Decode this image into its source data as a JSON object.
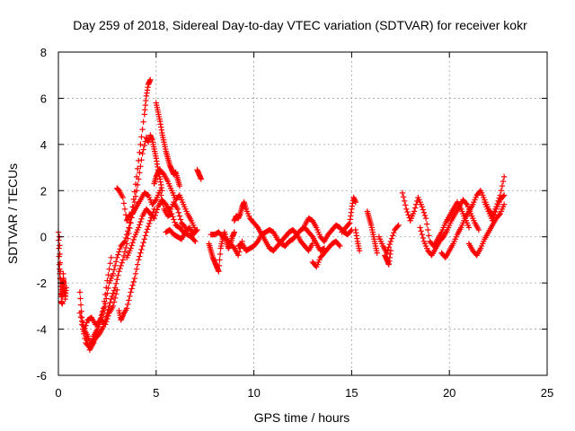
{
  "chart_data": {
    "type": "scatter",
    "title": "Day 259 of 2018, Sidereal Day-to-day VTEC variation (SDTVAR) for receiver kokr",
    "xlabel": "GPS time / hours",
    "ylabel": "SDTVAR / TECUs",
    "xlim": [
      0,
      25
    ],
    "ylim": [
      -6,
      8
    ],
    "x_ticks": [
      0,
      5,
      10,
      15,
      20,
      25
    ],
    "y_ticks": [
      -6,
      -4,
      -2,
      0,
      2,
      4,
      6,
      8
    ],
    "x_tick_labels": [
      "0",
      "5",
      "10",
      "15",
      "20",
      "25"
    ],
    "y_tick_labels": [
      "-6",
      "-4",
      "-2",
      "0",
      "2",
      "4",
      "6",
      "8"
    ],
    "grid": true,
    "marker": "+",
    "series_color": "#ff0000",
    "series": [
      {
        "name": "SDTVAR",
        "tracks": [
          {
            "x": [
              0.0,
              0.05,
              0.1,
              0.15,
              0.2,
              0.25,
              0.3,
              0.35,
              0.4
            ],
            "y": [
              0.2,
              -1.2,
              -2.0,
              -2.6,
              -2.3,
              -1.8,
              -2.1,
              -2.7,
              -2.2
            ]
          },
          {
            "x": [
              0.05,
              0.1,
              0.15,
              0.2,
              0.25,
              0.3
            ],
            "y": [
              0.0,
              -1.5,
              -2.8,
              -2.9,
              -1.6,
              -2.4
            ]
          },
          {
            "x": [
              1.1,
              1.2,
              1.4,
              1.6,
              1.8,
              2.0,
              2.2,
              2.4,
              2.6,
              2.8,
              3.0,
              3.2,
              3.4,
              3.6,
              3.8,
              4.0,
              4.2,
              4.4,
              4.5,
              4.6,
              4.7
            ],
            "y": [
              -2.4,
              -3.5,
              -4.3,
              -4.9,
              -4.6,
              -3.9,
              -3.5,
              -2.9,
              -2.0,
              -1.6,
              -0.9,
              -0.4,
              -0.2,
              0.4,
              1.3,
              2.6,
              4.0,
              5.3,
              6.1,
              6.6,
              6.8
            ]
          },
          {
            "x": [
              1.1,
              1.3,
              1.5,
              1.7,
              1.9,
              2.1,
              2.3,
              2.5,
              2.7,
              2.9,
              3.1,
              3.3,
              3.5,
              3.7,
              3.9,
              4.1,
              4.3,
              4.5,
              4.6
            ],
            "y": [
              -3.3,
              -4.0,
              -4.3,
              -4.7,
              -4.4,
              -4.2,
              -3.9,
              -3.3,
              -2.7,
              -2.2,
              -1.5,
              -1.0,
              -0.3,
              0.6,
              1.5,
              2.5,
              3.6,
              4.3,
              4.1
            ]
          },
          {
            "x": [
              1.2,
              1.4,
              1.6,
              1.8,
              2.0,
              2.2,
              2.4,
              2.6,
              2.8,
              3.0
            ],
            "y": [
              -3.8,
              -4.6,
              -4.8,
              -4.3,
              -4.0,
              -3.6,
              -3.8,
              -3.3,
              -3.0,
              -2.3
            ]
          },
          {
            "x": [
              1.3,
              1.5,
              1.7,
              1.9,
              2.1,
              2.3,
              2.5,
              2.7
            ],
            "y": [
              -4.1,
              -3.6,
              -3.5,
              -3.8,
              -3.7,
              -3.1,
              -1.9,
              -0.9
            ]
          },
          {
            "x": [
              3.1,
              3.2,
              3.3,
              3.5,
              3.7,
              3.9,
              4.1,
              4.3,
              4.5,
              4.7,
              4.9
            ],
            "y": [
              -3.2,
              -3.6,
              -3.4,
              -3.1,
              -2.4,
              -1.8,
              -1.0,
              -0.4,
              0.2,
              0.7,
              1.2
            ]
          },
          {
            "x": [
              3.0,
              3.1,
              3.3,
              3.5,
              3.6,
              3.8,
              4.0,
              4.2,
              4.4,
              4.6,
              4.8,
              5.0,
              5.2,
              5.4,
              5.6,
              5.8,
              6.0,
              6.2,
              6.4,
              6.6,
              6.8,
              7.0
            ],
            "y": [
              2.1,
              2.0,
              1.7,
              0.7,
              0.9,
              1.0,
              1.3,
              1.6,
              1.9,
              1.8,
              1.4,
              1.6,
              2.0,
              1.2,
              0.9,
              1.0,
              0.5,
              0.4,
              0.2,
              0.1,
              0.0,
              -0.2
            ]
          },
          {
            "x": [
              3.5,
              3.7,
              3.9,
              4.1,
              4.3,
              4.5,
              4.7,
              4.9,
              5.1,
              5.3,
              5.5,
              5.7,
              5.9,
              6.1,
              6.3,
              6.5
            ],
            "y": [
              -0.9,
              -0.5,
              0.0,
              0.4,
              0.9,
              1.2,
              1.0,
              0.8,
              1.3,
              1.6,
              1.4,
              1.1,
              1.5,
              1.2,
              0.6,
              0.4
            ]
          },
          {
            "x": [
              5.0,
              5.1,
              5.2,
              5.3,
              5.4,
              5.5,
              5.6,
              5.7,
              5.8,
              5.9,
              6.0,
              6.1,
              6.2
            ],
            "y": [
              5.8,
              5.4,
              5.0,
              4.5,
              4.1,
              3.7,
              3.4,
              3.1,
              2.9,
              2.7,
              2.8,
              2.5,
              2.2
            ]
          },
          {
            "x": [
              4.9,
              5.0,
              5.1,
              5.2,
              5.4,
              5.6,
              5.8,
              6.0,
              6.2,
              6.4,
              6.6,
              6.8,
              7.0
            ],
            "y": [
              2.3,
              2.6,
              2.8,
              2.9,
              2.7,
              2.4,
              2.0,
              1.6,
              1.8,
              1.4,
              1.0,
              0.7,
              0.3
            ]
          },
          {
            "x": [
              4.7,
              4.8,
              4.9,
              5.0,
              5.1,
              5.2,
              5.3
            ],
            "y": [
              4.4,
              4.2,
              3.8,
              3.4,
              2.9,
              2.5,
              2.0
            ]
          },
          {
            "x": [
              5.5,
              5.7,
              5.9,
              6.1,
              6.3,
              6.5,
              6.7,
              6.9,
              7.1
            ],
            "y": [
              0.2,
              0.3,
              0.1,
              0.0,
              -0.1,
              0.2,
              0.4,
              0.1,
              0.3
            ]
          },
          {
            "x": [
              7.1,
              7.2,
              7.3
            ],
            "y": [
              2.9,
              2.7,
              2.5
            ]
          },
          {
            "x": [
              7.7,
              7.8,
              7.9,
              8.0,
              8.1,
              8.2,
              8.3,
              8.4,
              8.5,
              8.6,
              8.7,
              8.8,
              8.9,
              9.0
            ],
            "y": [
              -0.3,
              -0.6,
              -0.9,
              -1.1,
              -1.3,
              -1.5,
              -0.5,
              -0.1,
              0.2,
              -0.2,
              -0.5,
              -0.3,
              0.0,
              0.2
            ]
          },
          {
            "x": [
              7.8,
              8.0,
              8.2,
              8.4,
              8.6,
              8.8,
              9.0,
              9.2,
              9.4
            ],
            "y": [
              0.1,
              0.1,
              0.2,
              0.0,
              -0.1,
              -0.3,
              -0.5,
              -0.8,
              -0.2
            ]
          },
          {
            "x": [
              9.0,
              9.1,
              9.2,
              9.3,
              9.4,
              9.5,
              9.6,
              9.8,
              10.0,
              10.2,
              10.4,
              10.6,
              10.8,
              11.0,
              11.2,
              11.4,
              11.6,
              11.8,
              12.0,
              12.2,
              12.4,
              12.6,
              12.8,
              13.0
            ],
            "y": [
              0.7,
              0.9,
              0.8,
              1.0,
              1.3,
              1.5,
              1.2,
              0.8,
              0.6,
              0.4,
              0.1,
              -0.2,
              -0.5,
              -0.6,
              -0.4,
              -0.2,
              0.0,
              0.2,
              0.3,
              0.1,
              -0.2,
              -0.4,
              -0.6,
              -0.3
            ]
          },
          {
            "x": [
              9.2,
              9.4,
              9.6,
              9.8,
              10.0,
              10.2,
              10.4,
              10.6,
              10.8,
              11.0,
              11.2,
              11.4,
              11.6,
              11.8,
              12.0,
              12.2,
              12.4,
              12.6,
              12.8,
              13.0,
              13.2,
              13.4,
              13.6
            ],
            "y": [
              -0.4,
              -0.3,
              -0.6,
              -0.5,
              -0.4,
              -0.2,
              0.1,
              0.2,
              0.3,
              0.2,
              -0.1,
              -0.3,
              -0.4,
              -0.2,
              -0.1,
              0.1,
              0.3,
              0.4,
              0.2,
              0.0,
              -0.3,
              -0.6,
              -0.5
            ]
          },
          {
            "x": [
              12.6,
              12.8,
              13.0,
              13.2,
              13.4,
              13.6,
              13.8,
              14.0,
              14.2,
              14.4,
              14.6,
              14.8,
              15.0
            ],
            "y": [
              0.5,
              0.8,
              0.7,
              0.4,
              0.0,
              -0.2,
              0.1,
              0.3,
              0.5,
              0.4,
              0.2,
              0.1,
              0.3
            ]
          },
          {
            "x": [
              13.0,
              13.2,
              13.4,
              13.6,
              13.8,
              14.0,
              14.2,
              14.4
            ],
            "y": [
              -1.1,
              -1.3,
              -0.9,
              -0.7,
              -0.5,
              -0.3,
              -0.2,
              -0.4
            ]
          },
          {
            "x": [
              14.5,
              14.7,
              14.9,
              15.0,
              15.1,
              15.2
            ],
            "y": [
              0.2,
              0.4,
              0.6,
              1.2,
              1.7,
              1.5
            ]
          },
          {
            "x": [
              15.2,
              15.3,
              15.4
            ],
            "y": [
              0.3,
              -0.2,
              -0.6
            ]
          },
          {
            "x": [
              15.8,
              15.9,
              16.0,
              16.1,
              16.2,
              16.3
            ],
            "y": [
              1.1,
              0.8,
              0.5,
              0.1,
              -0.3,
              -0.7
            ]
          },
          {
            "x": [
              16.4,
              16.6,
              16.8,
              17.0,
              17.2,
              17.4
            ],
            "y": [
              0.0,
              -0.4,
              -0.7,
              -0.2,
              0.3,
              0.5
            ]
          },
          {
            "x": [
              16.7,
              16.8,
              16.9,
              17.0
            ],
            "y": [
              -0.8,
              -1.0,
              -1.2,
              -0.6
            ]
          },
          {
            "x": [
              17.6,
              17.8,
              18.0,
              18.2,
              18.4,
              18.6,
              18.8,
              19.0,
              19.2,
              19.4,
              19.6,
              19.8,
              20.0,
              20.2,
              20.4,
              20.6,
              20.8,
              21.0
            ],
            "y": [
              1.9,
              1.2,
              0.7,
              1.1,
              1.7,
              1.3,
              0.8,
              -0.2,
              -0.4,
              -0.1,
              0.2,
              0.6,
              0.9,
              1.2,
              1.5,
              1.2,
              0.8,
              0.4
            ]
          },
          {
            "x": [
              18.5,
              18.7,
              18.9,
              19.1,
              19.3,
              19.5,
              19.7,
              19.9,
              20.1,
              20.3,
              20.5,
              20.7,
              20.9,
              21.1,
              21.3,
              21.5
            ],
            "y": [
              0.4,
              -0.2,
              -0.6,
              -0.8,
              -0.5,
              -0.2,
              0.0,
              0.3,
              0.7,
              1.0,
              1.3,
              1.6,
              1.4,
              1.0,
              0.6,
              0.3
            ]
          },
          {
            "x": [
              19.6,
              19.8,
              20.0,
              20.2,
              20.4,
              20.6,
              20.8,
              21.0,
              21.2,
              21.4,
              21.6,
              21.8,
              22.0,
              22.2,
              22.4,
              22.6,
              22.8
            ],
            "y": [
              -0.7,
              -0.9,
              -0.6,
              -0.3,
              0.1,
              0.4,
              0.8,
              1.1,
              1.4,
              1.8,
              2.0,
              1.6,
              1.2,
              0.9,
              1.3,
              1.8,
              2.6
            ]
          },
          {
            "x": [
              21.0,
              21.2,
              21.4,
              21.6,
              21.8,
              22.0,
              22.2,
              22.4,
              22.6,
              22.8
            ],
            "y": [
              -0.3,
              -0.6,
              -0.8,
              -0.5,
              -0.1,
              0.2,
              0.5,
              0.8,
              1.0,
              1.4
            ]
          },
          {
            "x": [
              21.8,
              22.0,
              22.2,
              22.4,
              22.6,
              22.8
            ],
            "y": [
              1.5,
              1.1,
              0.7,
              1.2,
              1.6,
              1.8
            ]
          }
        ]
      }
    ]
  }
}
